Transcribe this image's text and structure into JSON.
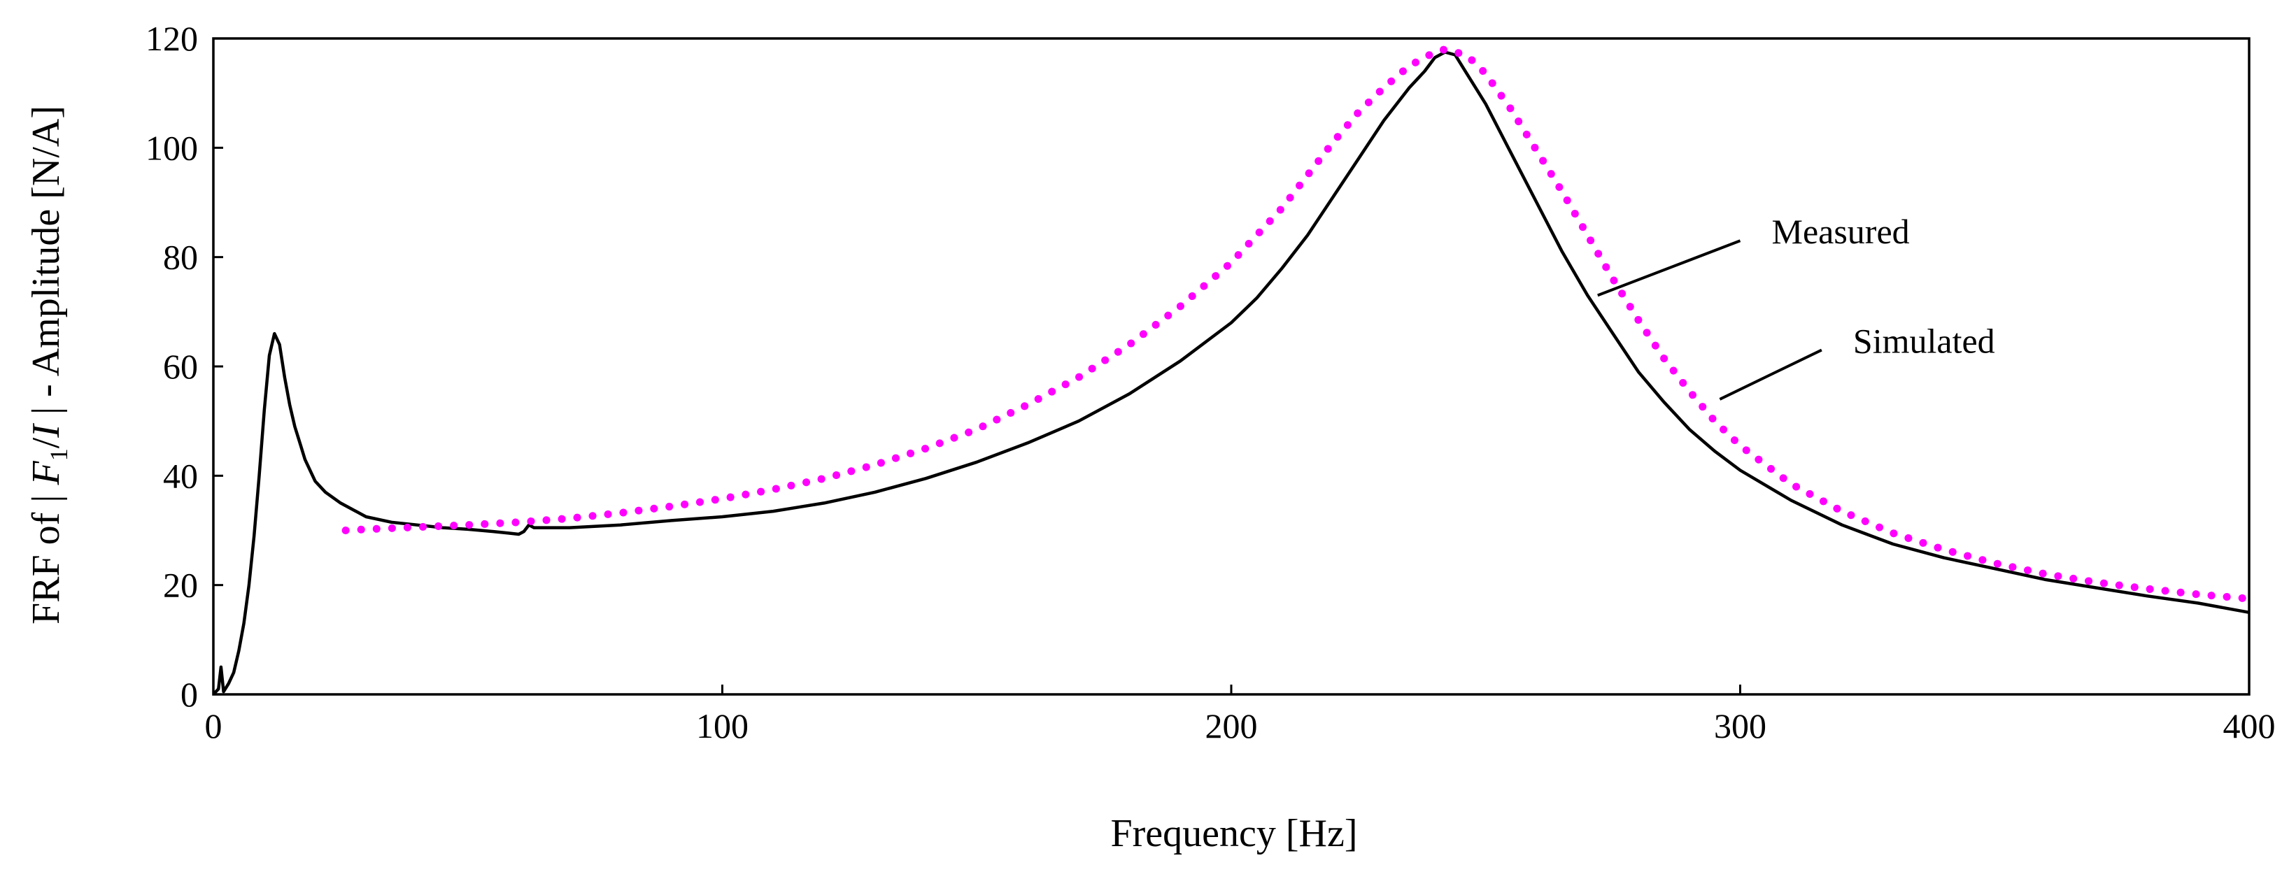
{
  "chart_data": {
    "type": "line",
    "title": "",
    "xlabel": "Frequency [Hz]",
    "ylabel": "FRF of | F₁/I | - Amplitude [N/A]",
    "ylabel_parts": {
      "prefix": "FRF of | ",
      "symbol": "F",
      "subscript": "1",
      "middle": "/",
      "symbol2": "I",
      "suffix": " |  - Amplitude [N/A]"
    },
    "xlim": [
      0,
      400
    ],
    "ylim": [
      0,
      120
    ],
    "x_ticks": [
      0,
      100,
      200,
      300,
      400
    ],
    "y_ticks": [
      0,
      20,
      40,
      60,
      80,
      100,
      120
    ],
    "x_tick_labels": [
      "0",
      "100",
      "200",
      "300",
      "400"
    ],
    "y_tick_labels": [
      "0",
      "20",
      "40",
      "60",
      "80",
      "100",
      "120"
    ],
    "grid": false,
    "series": [
      {
        "name": "Measured",
        "style": "solid",
        "color": "#000000",
        "x": [
          0,
          1,
          1.5,
          2,
          3,
          4,
          5,
          6,
          7,
          8,
          9,
          10,
          11,
          12,
          13,
          14,
          15,
          16,
          17,
          18,
          20,
          22,
          25,
          28,
          30,
          35,
          40,
          45,
          50,
          55,
          58,
          60,
          61,
          62,
          63,
          65,
          70,
          80,
          90,
          100,
          110,
          120,
          130,
          140,
          150,
          160,
          170,
          180,
          190,
          200,
          205,
          210,
          215,
          220,
          225,
          230,
          235,
          238,
          240,
          242,
          244,
          246,
          248,
          250,
          255,
          260,
          265,
          270,
          275,
          280,
          285,
          290,
          295,
          300,
          310,
          320,
          330,
          340,
          350,
          360,
          370,
          380,
          390,
          400
        ],
        "y": [
          0,
          1,
          5,
          0.5,
          2,
          4,
          8,
          13,
          20,
          29,
          40,
          52,
          62,
          66,
          64,
          58,
          53,
          49,
          46,
          43,
          39,
          37,
          35,
          33.5,
          32.5,
          31.5,
          31,
          30.5,
          30.2,
          29.8,
          29.5,
          29.3,
          29.8,
          31,
          30.5,
          30.5,
          30.5,
          31,
          31.8,
          32.5,
          33.5,
          35,
          37,
          39.5,
          42.5,
          46,
          50,
          55,
          61,
          68,
          72.5,
          78,
          84,
          91,
          98,
          105,
          111,
          114,
          116.5,
          117.5,
          117,
          114,
          111,
          108,
          99,
          90,
          81,
          73,
          66,
          59,
          53.5,
          48.5,
          44.5,
          41,
          35.5,
          31,
          27.5,
          25,
          23,
          21,
          19.5,
          18,
          16.7,
          15
        ]
      },
      {
        "name": "Simulated",
        "style": "dotted",
        "color": "#ff00ff",
        "x": [
          26,
          30,
          40,
          50,
          60,
          70,
          80,
          90,
          100,
          110,
          120,
          130,
          140,
          150,
          160,
          170,
          180,
          190,
          200,
          205,
          210,
          215,
          220,
          225,
          230,
          235,
          240,
          242,
          244,
          246,
          248,
          250,
          255,
          260,
          265,
          270,
          275,
          280,
          285,
          290,
          295,
          300,
          310,
          320,
          330,
          340,
          350,
          360,
          370,
          380,
          390,
          400
        ],
        "y": [
          30,
          30.2,
          30.6,
          31,
          31.5,
          32.2,
          33.2,
          34.4,
          35.8,
          37.5,
          39.5,
          42,
          45,
          48.5,
          53,
          58,
          64,
          71,
          79,
          84,
          89,
          95,
          101,
          106.5,
          111,
          115,
          117.5,
          118,
          117.5,
          117,
          115.5,
          113.5,
          107,
          99.5,
          92,
          84,
          76,
          68.5,
          61.5,
          55.5,
          50,
          45.5,
          38.5,
          33.5,
          29.5,
          26.5,
          24,
          22,
          20.5,
          19.3,
          18.3,
          17.5
        ]
      }
    ],
    "annotations": [
      {
        "text": "Measured",
        "line_from": [
          272,
          73
        ],
        "line_to": [
          300,
          83
        ]
      },
      {
        "text": "Simulated",
        "line_from": [
          296,
          54
        ],
        "line_to": [
          316,
          63
        ]
      }
    ]
  }
}
